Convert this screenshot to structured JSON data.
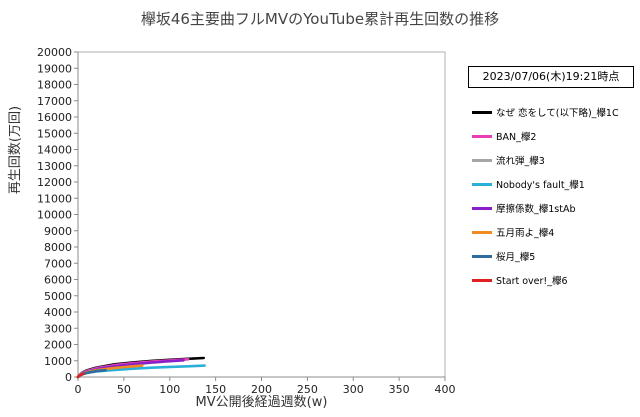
{
  "chart_data": {
    "type": "line",
    "title": "欅坂46主要曲フルMVのYouTube累計再生回数の推移",
    "xlabel": "MV公開後経過週数(w)",
    "ylabel": "再生回数(万回)",
    "xlim": [
      0,
      400
    ],
    "ylim": [
      0,
      20000
    ],
    "x_ticks": [
      "0",
      "50",
      "100",
      "150",
      "200",
      "250",
      "300",
      "350",
      "400"
    ],
    "y_ticks": [
      "0",
      "1000",
      "2000",
      "3000",
      "4000",
      "5000",
      "6000",
      "7000",
      "8000",
      "9000",
      "10000",
      "11000",
      "12000",
      "13000",
      "14000",
      "15000",
      "16000",
      "17000",
      "18000",
      "19000",
      "20000"
    ],
    "grid": "none",
    "legend_position": "right",
    "annotation": "2023/07/06(木)19:21時点",
    "series": [
      {
        "name": "なぜ 恋をして(以下略)_欅1C",
        "color": "#000000",
        "x": [
          0,
          2,
          5,
          10,
          20,
          40,
          60,
          80,
          100,
          120,
          137
        ],
        "y": [
          0,
          150,
          280,
          420,
          580,
          780,
          900,
          990,
          1060,
          1120,
          1170
        ]
      },
      {
        "name": "BAN_欅2",
        "color": "#e83fb8",
        "x": [
          0,
          2,
          5,
          10,
          20,
          40,
          60,
          80,
          100,
          120
        ],
        "y": [
          0,
          140,
          260,
          390,
          540,
          730,
          850,
          950,
          1020,
          1090
        ]
      },
      {
        "name": "流れ弾_欅3",
        "color": "#a6a6a6",
        "x": [
          0,
          2,
          5,
          10,
          20,
          40,
          60,
          80,
          90
        ],
        "y": [
          0,
          130,
          240,
          350,
          490,
          660,
          780,
          880,
          930
        ]
      },
      {
        "name": "Nobody's fault_欅1",
        "color": "#2ab0d8",
        "x": [
          0,
          2,
          5,
          10,
          20,
          40,
          60,
          80,
          100,
          120,
          138
        ],
        "y": [
          0,
          90,
          170,
          250,
          340,
          440,
          510,
          570,
          620,
          660,
          700
        ]
      },
      {
        "name": "摩擦係数_欅1stAb",
        "color": "#8a1fc9",
        "x": [
          0,
          2,
          5,
          10,
          20,
          40,
          60,
          80,
          100,
          115
        ],
        "y": [
          0,
          120,
          230,
          340,
          480,
          660,
          790,
          890,
          970,
          1030
        ]
      },
      {
        "name": "五月雨よ_欅4",
        "color": "#f08a24",
        "x": [
          0,
          2,
          5,
          10,
          20,
          40,
          60,
          70
        ],
        "y": [
          0,
          110,
          200,
          300,
          420,
          560,
          660,
          700
        ]
      },
      {
        "name": "桜月_欅5",
        "color": "#2f6c9e",
        "x": [
          0,
          2,
          5,
          10,
          20,
          30
        ],
        "y": [
          0,
          100,
          180,
          260,
          360,
          420
        ]
      },
      {
        "name": "Start over!_欅6",
        "color": "#e02020",
        "x": [
          0,
          1,
          2,
          4,
          6
        ],
        "y": [
          0,
          60,
          100,
          150,
          190
        ]
      }
    ]
  }
}
